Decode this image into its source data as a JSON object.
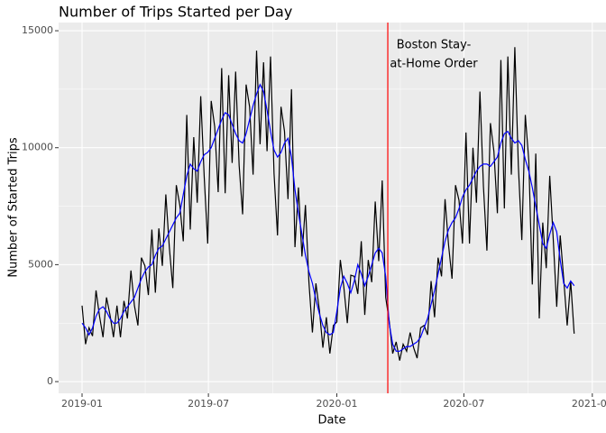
{
  "chart_data": {
    "type": "line",
    "title": "Number of Trips Started per Day",
    "xlabel": "Date",
    "ylabel": "Number of Started Trips",
    "x": [
      0,
      5,
      10,
      15,
      20,
      25,
      30,
      35,
      40,
      45,
      50,
      55,
      60,
      65,
      70,
      75,
      80,
      85,
      90,
      95,
      100,
      105,
      110,
      115,
      120,
      125,
      130,
      135,
      140,
      145,
      150,
      155,
      160,
      165,
      170,
      175,
      180,
      185,
      190,
      195,
      200,
      205,
      210,
      215,
      220,
      225,
      230,
      235,
      240,
      245,
      250,
      255,
      260,
      265,
      270,
      275,
      280,
      285,
      290,
      295,
      300,
      305,
      310,
      315,
      320,
      325,
      330,
      335,
      340,
      345,
      350,
      355,
      360,
      365,
      370,
      375,
      380,
      385,
      390,
      395,
      400,
      405,
      410,
      415,
      420,
      425,
      430,
      435,
      440,
      445,
      450,
      455,
      460,
      465,
      470,
      475,
      480,
      485,
      490,
      495,
      500,
      505,
      510,
      515,
      520,
      525,
      530,
      535,
      540,
      545,
      550,
      555,
      560,
      565,
      570,
      575,
      580,
      585,
      590,
      595,
      600,
      605,
      610,
      615,
      620,
      625,
      630,
      635,
      640,
      645,
      650,
      655,
      660,
      665,
      670,
      675,
      680,
      685,
      690,
      695,
      700,
      705
    ],
    "series": [
      {
        "color": "#000000",
        "values": [
          3250,
          1600,
          2300,
          1950,
          3900,
          2800,
          1900,
          3600,
          2850,
          1900,
          3250,
          1900,
          3450,
          2700,
          4750,
          3250,
          2400,
          5300,
          4950,
          3700,
          6500,
          3800,
          6550,
          4950,
          8000,
          5750,
          4000,
          8400,
          7550,
          6000,
          11400,
          6500,
          10450,
          7650,
          12200,
          8750,
          5900,
          12000,
          10900,
          8100,
          13400,
          8050,
          13100,
          9350,
          13250,
          9250,
          7150,
          12700,
          11750,
          8850,
          14150,
          10150,
          13650,
          9850,
          13900,
          8900,
          6250,
          11750,
          10700,
          7800,
          12500,
          5750,
          8300,
          5350,
          7550,
          4250,
          2100,
          4200,
          3050,
          1450,
          2750,
          1200,
          2400,
          2550,
          5200,
          4050,
          2500,
          4550,
          4500,
          3750,
          6000,
          2850,
          5200,
          4250,
          7700,
          5150,
          8600,
          3600,
          2600,
          1200,
          1700,
          900,
          1600,
          1300,
          2100,
          1450,
          1000,
          2300,
          2400,
          2000,
          4300,
          2750,
          5300,
          4500,
          7800,
          5850,
          4400,
          8400,
          7750,
          5900,
          10650,
          5900,
          10000,
          7650,
          12400,
          8350,
          5600,
          11050,
          9850,
          7200,
          13750,
          7400,
          13900,
          8850,
          14300,
          9250,
          6050,
          11400,
          9450,
          4150,
          9750,
          2700,
          6800,
          4850,
          8800,
          6100,
          3200,
          6250,
          4400,
          2400,
          4300,
          2050
        ]
      },
      {
        "color": "#0000ff",
        "values": [
          2500,
          2300,
          2000,
          2300,
          2800,
          3100,
          3200,
          3000,
          2700,
          2500,
          2500,
          2700,
          3000,
          3200,
          3400,
          3600,
          4000,
          4400,
          4700,
          4900,
          5000,
          5400,
          5700,
          5800,
          6100,
          6400,
          6700,
          7000,
          7200,
          8000,
          8800,
          9300,
          9100,
          9000,
          9400,
          9700,
          9800,
          10000,
          10400,
          10800,
          11200,
          11500,
          11400,
          11000,
          10600,
          10300,
          10200,
          10600,
          11200,
          11800,
          12300,
          12700,
          12400,
          11600,
          10700,
          9900,
          9600,
          9800,
          10200,
          10400,
          9600,
          8200,
          7200,
          6300,
          5400,
          4700,
          4200,
          3500,
          2900,
          2400,
          2100,
          2000,
          2100,
          3000,
          4000,
          4500,
          4200,
          3800,
          4300,
          5000,
          4600,
          4100,
          4500,
          5000,
          5500,
          5700,
          5500,
          4500,
          2500,
          1600,
          1300,
          1300,
          1400,
          1500,
          1500,
          1600,
          1700,
          1900,
          2300,
          2700,
          3300,
          3900,
          4600,
          5300,
          6000,
          6500,
          6800,
          7000,
          7400,
          7900,
          8200,
          8400,
          8700,
          9000,
          9200,
          9300,
          9300,
          9200,
          9400,
          9600,
          10200,
          10600,
          10700,
          10400,
          10200,
          10300,
          10100,
          9500,
          9000,
          8300,
          7500,
          6700,
          5900,
          5700,
          6300,
          6800,
          6400,
          5200,
          4200,
          4000,
          4300,
          4100
        ]
      }
    ],
    "xlim": [
      -33.6,
      750.6
    ],
    "xticks": [
      {
        "value": 0,
        "label": "2019-01"
      },
      {
        "value": 181,
        "label": "2019-07"
      },
      {
        "value": 365,
        "label": "2020-01"
      },
      {
        "value": 547,
        "label": "2020-07"
      },
      {
        "value": 731,
        "label": "2021-01"
      }
    ],
    "ylim": [
      -500,
      15350
    ],
    "yticks": [
      0,
      5000,
      10000,
      15000
    ],
    "grid": true,
    "vline": {
      "x": 438,
      "color": "#ff0000",
      "label": [
        "Boston Stay-",
        "at-Home Order"
      ]
    }
  }
}
